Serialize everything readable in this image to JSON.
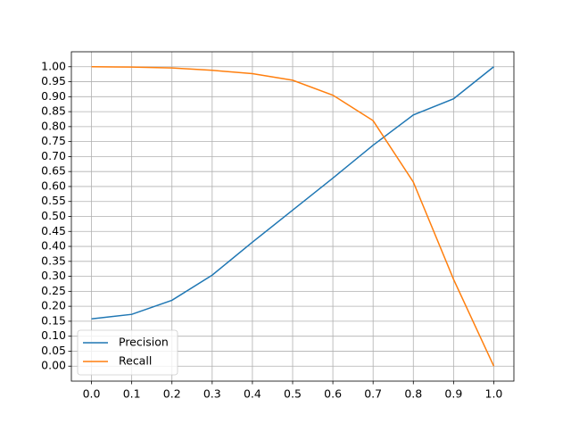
{
  "chart_data": {
    "type": "line",
    "x": [
      0.0,
      0.1,
      0.2,
      0.3,
      0.4,
      0.5,
      0.6,
      0.7,
      0.8,
      0.9,
      1.0
    ],
    "series": [
      {
        "name": "Precision",
        "color": "#1f77b4",
        "values": [
          0.158,
          0.173,
          0.22,
          0.304,
          0.414,
          0.521,
          0.628,
          0.738,
          0.839,
          0.893,
          1.0
        ]
      },
      {
        "name": "Recall",
        "color": "#ff7f0e",
        "values": [
          1.0,
          0.999,
          0.996,
          0.988,
          0.977,
          0.955,
          0.905,
          0.82,
          0.615,
          0.29,
          0.0
        ]
      }
    ],
    "xlim": [
      -0.05,
      1.05
    ],
    "ylim": [
      -0.05,
      1.05
    ],
    "xticks": [
      {
        "value": 0,
        "label": "0.0"
      },
      0.1,
      0.2,
      0.3,
      0.4,
      0.5,
      0.6,
      0.7,
      0.8,
      0.9,
      {
        "value": 1,
        "label": "1.0"
      }
    ],
    "yticks": [
      {
        "value": 0,
        "label": "0.00"
      },
      0.05,
      {
        "value": 0.1,
        "label": "0.10"
      },
      0.15,
      {
        "value": 0.2,
        "label": "0.20"
      },
      0.25,
      {
        "value": 0.3,
        "label": "0.30"
      },
      0.35,
      {
        "value": 0.4,
        "label": "0.40"
      },
      0.45,
      {
        "value": 0.5,
        "label": "0.50"
      },
      0.55,
      {
        "value": 0.6,
        "label": "0.60"
      },
      0.65,
      {
        "value": 0.7,
        "label": "0.70"
      },
      0.75,
      {
        "value": 0.8,
        "label": "0.80"
      },
      0.85,
      {
        "value": 0.9,
        "label": "0.90"
      },
      0.95,
      {
        "value": 1,
        "label": "1.00"
      }
    ],
    "grid": true,
    "legend": "lower left"
  }
}
